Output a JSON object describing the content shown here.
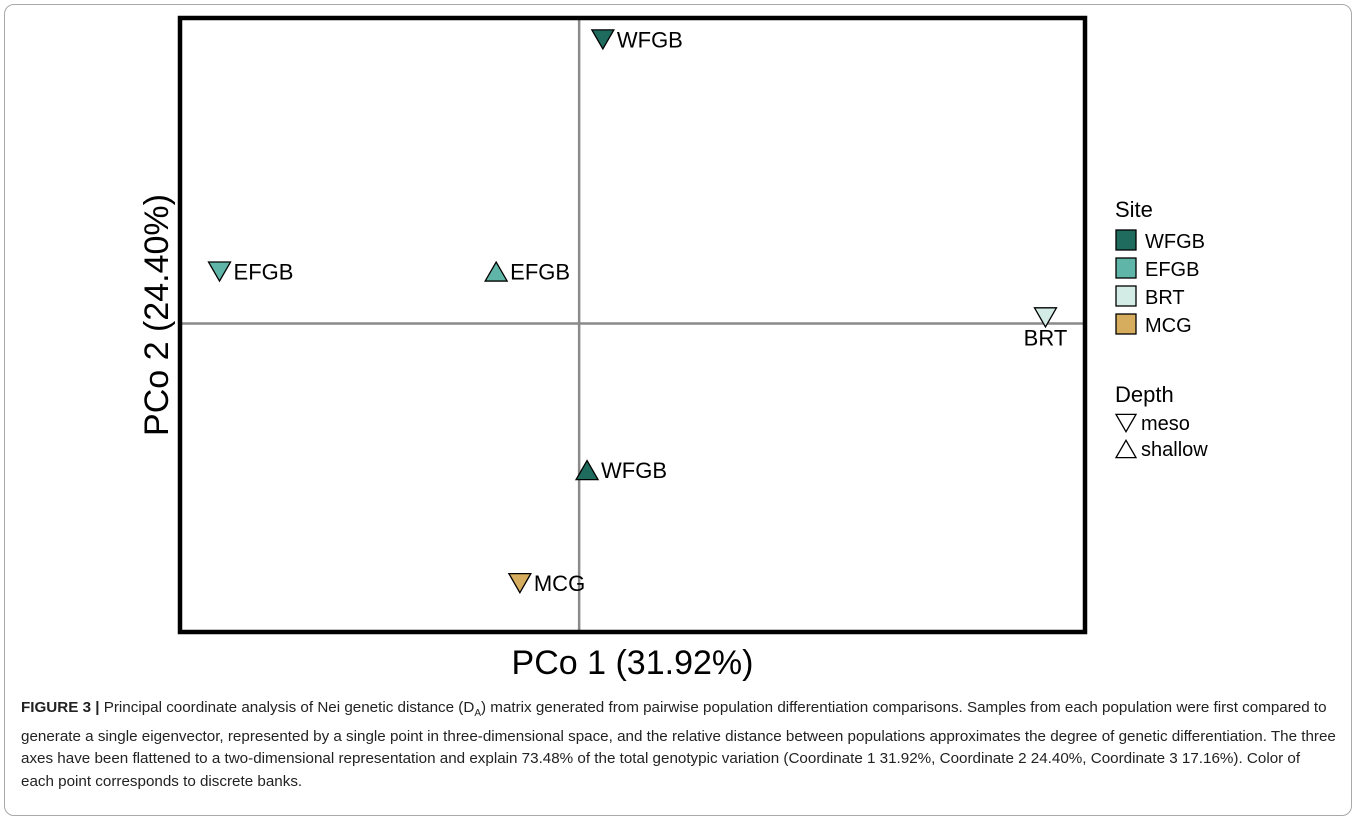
{
  "chart_data": {
    "type": "scatter",
    "xlabel": "PCo 1 (31.92%)",
    "ylabel": "PCo 2 (24.40%)",
    "xlim": [
      -1.01,
      1.28
    ],
    "ylim": [
      -1.01,
      1.0
    ],
    "reference_lines": {
      "x": 0,
      "y": 0
    },
    "grid": false,
    "legend_position": "right",
    "colors": {
      "WFGB": "#1f6b5e",
      "EFGB": "#5fb5a7",
      "BRT": "#d3ece6",
      "MCG": "#d6ac5e"
    },
    "points": [
      {
        "label": "WFGB",
        "site": "WFGB",
        "depth": "meso",
        "x": 0.06,
        "y": 0.93
      },
      {
        "label": "EFGB",
        "site": "EFGB",
        "depth": "meso",
        "x": -0.91,
        "y": 0.17
      },
      {
        "label": "EFGB",
        "site": "EFGB",
        "depth": "shallow",
        "x": -0.21,
        "y": 0.17
      },
      {
        "label": "BRT",
        "site": "BRT",
        "depth": "meso",
        "x": 1.18,
        "y": 0.02
      },
      {
        "label": "WFGB",
        "site": "WFGB",
        "depth": "shallow",
        "x": 0.02,
        "y": -0.48
      },
      {
        "label": "MCG",
        "site": "MCG",
        "depth": "meso",
        "x": -0.15,
        "y": -0.85
      }
    ],
    "legend": {
      "site_title": "Site",
      "sites": [
        "WFGB",
        "EFGB",
        "BRT",
        "MCG"
      ],
      "depth_title": "Depth",
      "depths": [
        {
          "label": "meso",
          "shape": "triangle-down"
        },
        {
          "label": "shallow",
          "shape": "triangle-up"
        }
      ]
    }
  },
  "caption": {
    "label": "FIGURE 3 |",
    "text_before_sub": " Principal coordinate analysis of Nei genetic distance (D",
    "sub": "A",
    "text_after_sub": ") matrix generated from pairwise population differentiation comparisons. Samples from each population were first compared to generate a single eigenvector, represented by a single point in three-dimensional space, and the relative distance between populations approximates the degree of genetic differentiation. The three axes have been flattened to a two-dimensional representation and explain 73.48% of the total genotypic variation (Coordinate 1 31.92%, Coordinate 2 24.40%, Coordinate 3 17.16%). Color of each point corresponds to discrete banks."
  }
}
